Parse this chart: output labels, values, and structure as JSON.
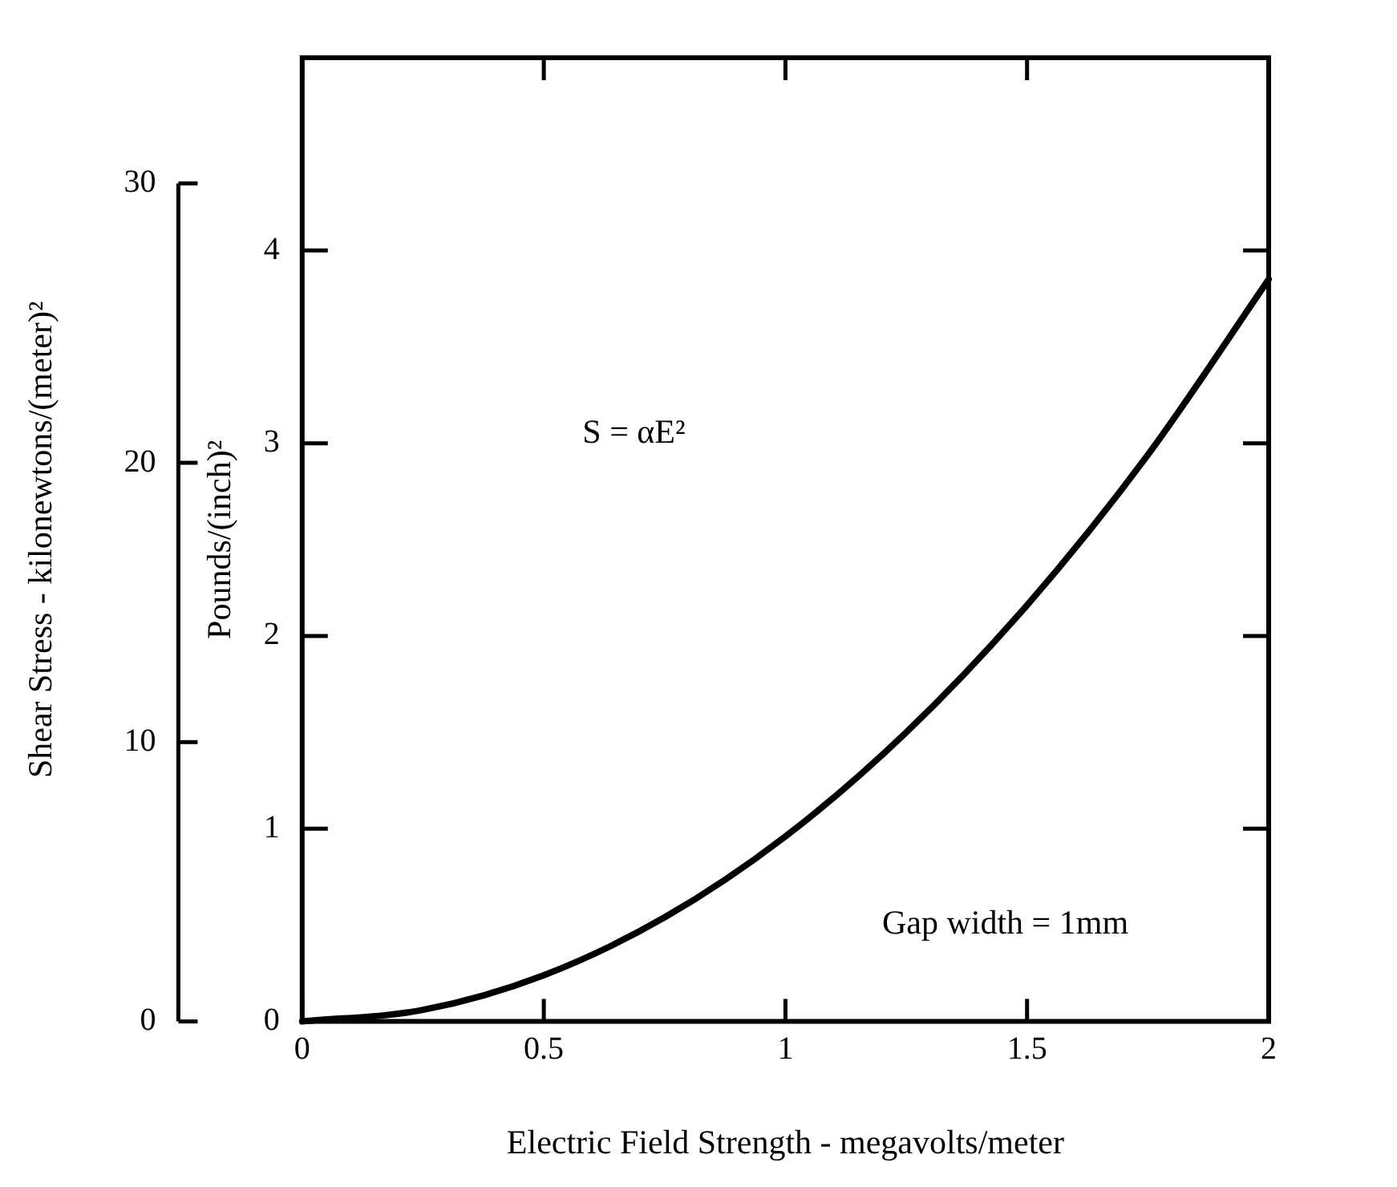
{
  "chart_data": {
    "type": "line",
    "xlabel": "Electric Field Strength - megavolts/meter",
    "ylabel": "Pounds/(inch)²",
    "y2label": "Shear Stress - kilonewtons/(meter)²",
    "x": [
      0,
      0.25,
      0.5,
      0.75,
      1,
      1.25,
      1.5,
      1.75,
      2
    ],
    "series": [
      {
        "color": "#000000",
        "values": [
          0,
          0.06,
          0.24,
          0.54,
          0.96,
          1.5,
          2.16,
          2.94,
          3.85
        ]
      }
    ],
    "xlim": [
      0,
      2
    ],
    "xticks": [
      0,
      {
        "value": 0.5,
        "label": "0.5"
      },
      1,
      {
        "value": 1.5,
        "label": "1.5"
      },
      2
    ],
    "ylim": [
      0,
      5
    ],
    "yticks": [
      0,
      1,
      2,
      3,
      4
    ],
    "y2lim": [
      0,
      34.5
    ],
    "y2ticks": [
      0,
      10,
      20,
      30
    ],
    "annotations": [
      "S = αE²",
      "Gap width = 1mm"
    ],
    "grid": false,
    "legend": false,
    "marker": "none",
    "line_style": "solid"
  }
}
